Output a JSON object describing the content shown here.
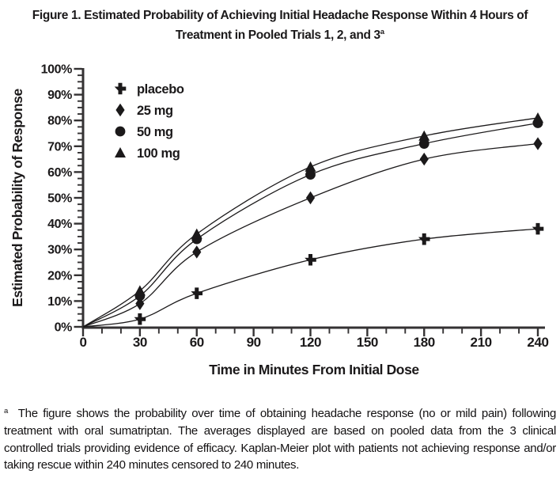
{
  "title": {
    "line1": "Figure 1. Estimated Probability of Achieving Initial Headache Response Within 4 Hours of",
    "line2": "Treatment in Pooled Trials 1, 2, and 3",
    "superscript": "a"
  },
  "chart_data": {
    "type": "line",
    "x": [
      0,
      30,
      60,
      120,
      180,
      240
    ],
    "series": [
      {
        "name": "placebo",
        "marker": "plus",
        "values": [
          0,
          3,
          13,
          26,
          34,
          38
        ]
      },
      {
        "name": "25 mg",
        "marker": "diamond",
        "values": [
          0,
          9,
          29,
          50,
          65,
          71
        ]
      },
      {
        "name": "50 mg",
        "marker": "circle",
        "values": [
          0,
          12,
          34,
          59,
          71,
          79
        ]
      },
      {
        "name": "100 mg",
        "marker": "triangle",
        "values": [
          0,
          14,
          36,
          62,
          74,
          81
        ]
      }
    ],
    "xlabel": "Time in Minutes From Initial Dose",
    "ylabel": "Estimated Probability of Response",
    "xlim": [
      0,
      240
    ],
    "ylim": [
      0,
      100
    ],
    "x_tick_labels": [
      "0",
      "30",
      "60",
      "90",
      "120",
      "150",
      "180",
      "210",
      "240"
    ],
    "x_major_ticks": [
      0,
      30,
      60,
      90,
      120,
      150,
      180,
      210,
      240
    ],
    "x_minor_step": 10,
    "y_tick_labels": [
      "0%",
      "10%",
      "20%",
      "30%",
      "40%",
      "50%",
      "60%",
      "70%",
      "80%",
      "90%",
      "100%"
    ],
    "y_major_step": 10,
    "y_minor_step": 2.5,
    "grid": false,
    "legend_position": "top-left"
  },
  "footnote": {
    "marker": "a",
    "text": "The figure shows the probability over time of obtaining headache response (no or mild pain) following treatment with oral sumatriptan. The averages displayed are based on pooled data from the 3 clinical controlled trials providing evidence of efficacy. Kaplan-Meier plot with patients not achieving response and/or taking rescue within 240 minutes censored to 240 minutes."
  },
  "colors": {
    "ink": "#1b191a",
    "axis": "#343233",
    "background": "#ffffff"
  }
}
